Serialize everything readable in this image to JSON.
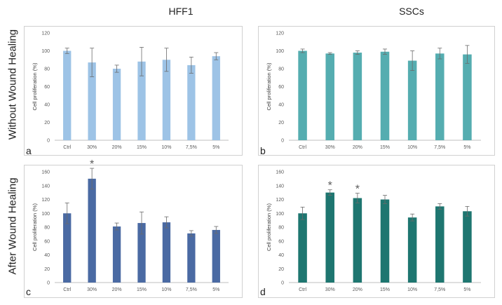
{
  "column_titles": [
    "HFF1",
    "SSCs"
  ],
  "row_titles": [
    "Without Wound Healing",
    "After Wound Healing"
  ],
  "chart_data": [
    {
      "type": "bar",
      "panel": "a",
      "cell_line": "HFF1",
      "condition": "Without Wound Healing",
      "categories": [
        "Ctrl",
        "30%",
        "20%",
        "15%",
        "10%",
        "7,5%",
        "5%"
      ],
      "values": [
        100,
        87,
        80,
        88,
        90,
        84,
        94
      ],
      "errors": [
        3,
        16,
        4,
        16,
        13,
        9,
        4
      ],
      "significant": [],
      "ylabel": "Cell proliferation (%)",
      "ylim": [
        0,
        120
      ],
      "yticks": [
        0,
        20,
        40,
        60,
        80,
        100,
        120
      ],
      "color": "#9dc3e6",
      "grid": false
    },
    {
      "type": "bar",
      "panel": "b",
      "cell_line": "SSCs",
      "condition": "Without Wound Healing",
      "categories": [
        "Ctrl",
        "30%",
        "20%",
        "15%",
        "10%",
        "7,5%",
        "5%"
      ],
      "values": [
        100,
        97,
        98,
        99,
        89,
        97,
        96
      ],
      "errors": [
        2,
        1,
        2,
        3,
        11,
        6,
        10
      ],
      "significant": [],
      "ylabel": "Cell proliferation (%)",
      "ylim": [
        0,
        120
      ],
      "yticks": [
        0,
        20,
        40,
        60,
        80,
        100,
        120
      ],
      "color": "#55adb0",
      "grid": false
    },
    {
      "type": "bar",
      "panel": "c",
      "cell_line": "HFF1",
      "condition": "After Wound Healing",
      "categories": [
        "Ctrl",
        "30%",
        "20%",
        "15%",
        "10%",
        "7,5%",
        "5%"
      ],
      "values": [
        100,
        150,
        81,
        86,
        87,
        71,
        76
      ],
      "errors": [
        15,
        15,
        5,
        16,
        8,
        4,
        5
      ],
      "significant": [
        1
      ],
      "significance_marker": "*",
      "ylabel": "Cell proliferation (%)",
      "ylim": [
        0,
        160
      ],
      "yticks": [
        0,
        20,
        40,
        60,
        80,
        100,
        120,
        140,
        160
      ],
      "color": "#4a6aa3",
      "grid": false
    },
    {
      "type": "bar",
      "panel": "d",
      "cell_line": "SSCs",
      "condition": "After Wound Healing",
      "categories": [
        "Ctrl",
        "30%",
        "20%",
        "15%",
        "10%",
        "7,5%",
        "5%"
      ],
      "values": [
        100,
        130,
        122,
        120,
        94,
        110,
        103
      ],
      "errors": [
        9,
        4,
        7,
        6,
        5,
        4,
        7
      ],
      "significant": [
        1,
        2
      ],
      "significance_marker": "*",
      "ylabel": "Cell proliferation (%)",
      "ylim": [
        0,
        160
      ],
      "yticks": [
        0,
        20,
        40,
        60,
        80,
        100,
        120,
        140,
        160
      ],
      "color": "#1e7670",
      "grid": false
    }
  ]
}
